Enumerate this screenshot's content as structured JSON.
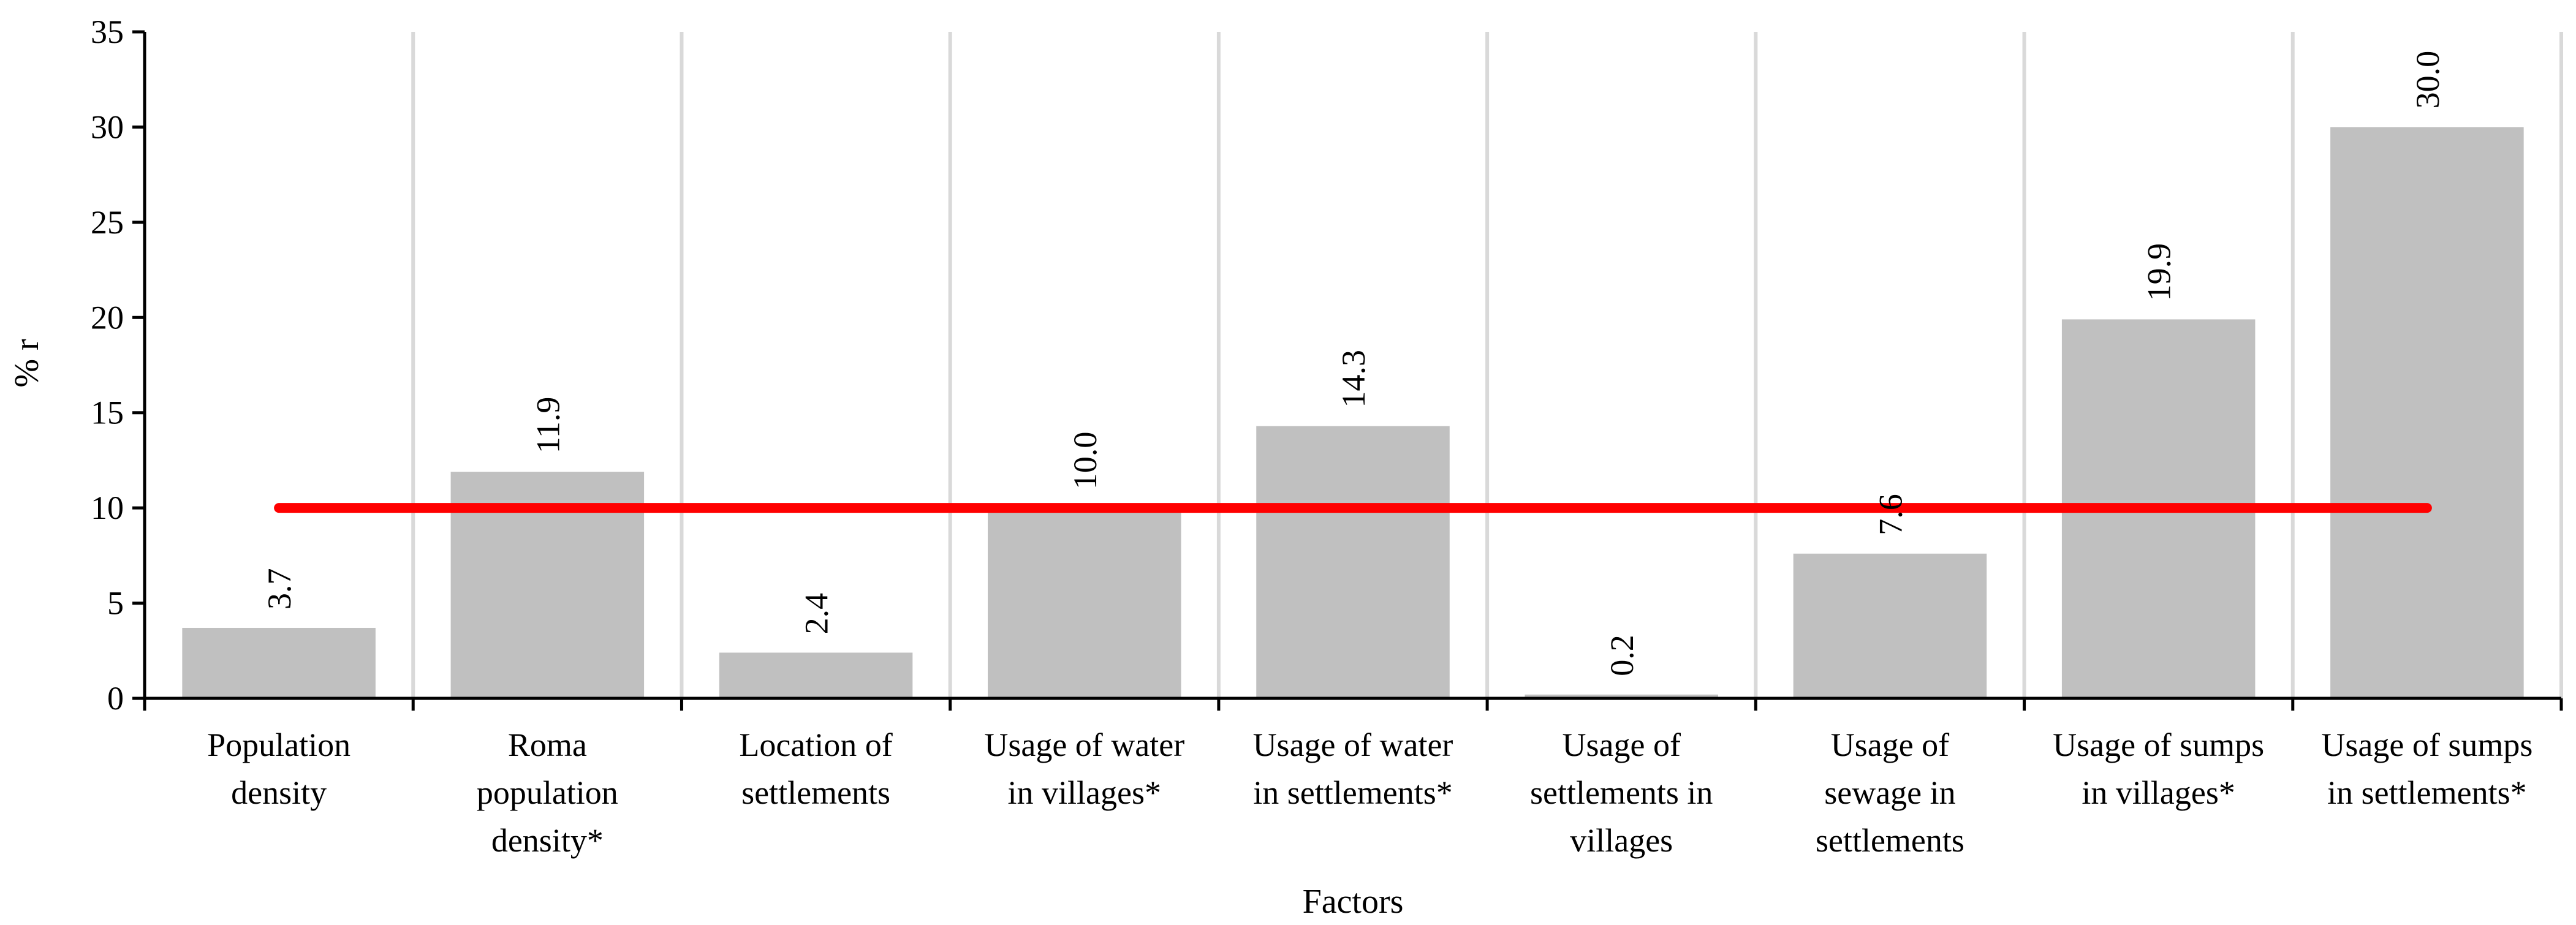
{
  "chart_data": {
    "type": "bar",
    "categories": [
      [
        "Population",
        "density"
      ],
      [
        "Roma",
        "population",
        "density*"
      ],
      [
        "Location of",
        "settlements"
      ],
      [
        "Usage of water",
        "in villages*"
      ],
      [
        "Usage of water",
        "in settlements*"
      ],
      [
        "Usage of",
        "settlements in",
        "villages"
      ],
      [
        "Usage of",
        "sewage in",
        "settlements"
      ],
      [
        "Usage of sumps",
        "in villages*"
      ],
      [
        "Usage of sumps",
        "in settlements*"
      ]
    ],
    "values": [
      3.7,
      11.9,
      2.4,
      10.0,
      14.3,
      0.2,
      7.6,
      19.9,
      30.0
    ],
    "data_labels": [
      "3.7",
      "11.9",
      "2.4",
      "10.0",
      "14.3",
      "0.2",
      "7.6",
      "19.9",
      "30.0"
    ],
    "xlabel": "Factors",
    "ylabel": "% r",
    "ylim": [
      0,
      35
    ],
    "yticks": [
      0,
      5,
      10,
      15,
      20,
      25,
      30,
      35
    ],
    "threshold": 10,
    "bar_color": "#c0c0c0",
    "threshold_color": "#ff0000",
    "grid": "vertical separators between categories"
  }
}
